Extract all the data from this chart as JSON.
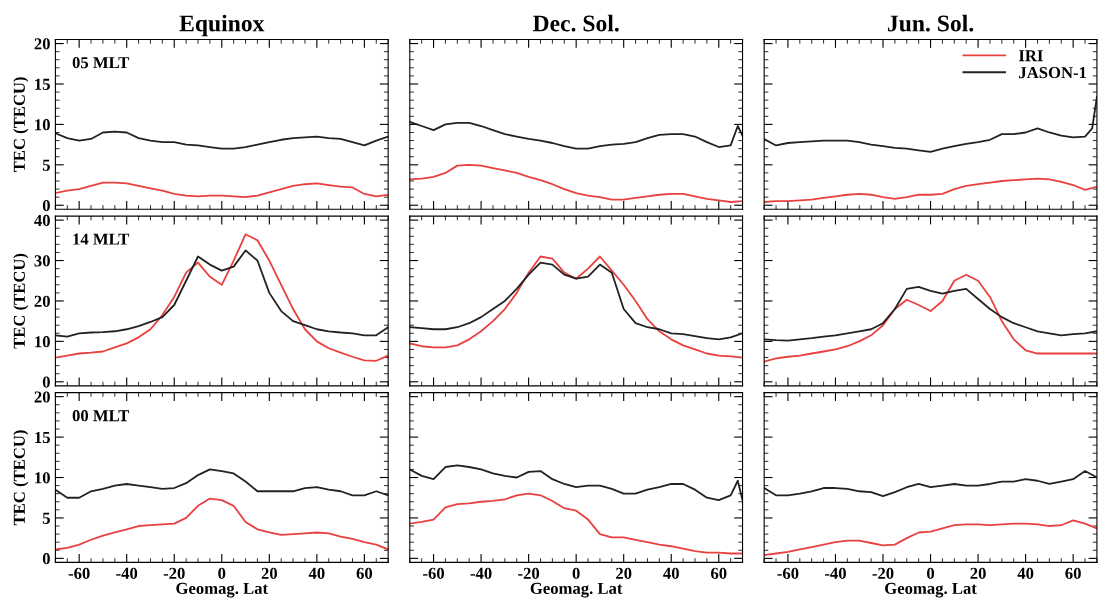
{
  "chart_data": [
    {
      "type": "line",
      "title": "Equinox",
      "ylabel": "TEC (TECU)",
      "annotations": [
        "05 MLT"
      ],
      "xlim": [
        -70,
        70
      ],
      "xticks": [
        -60,
        -40,
        -20,
        0,
        20,
        40,
        60
      ],
      "ylim": [
        -0.5,
        20.5
      ],
      "yticks": [
        0,
        5,
        10,
        15,
        20
      ],
      "tick_labels": "y",
      "legend": false,
      "grid": false,
      "x": [
        -70,
        -65,
        -60,
        -55,
        -50,
        -45,
        -40,
        -35,
        -30,
        -25,
        -20,
        -15,
        -10,
        -5,
        0,
        5,
        10,
        15,
        20,
        25,
        30,
        35,
        40,
        45,
        50,
        55,
        60,
        65,
        70
      ],
      "series": [
        {
          "color": "#e8413f",
          "values": [
            1.5,
            1.8,
            2.0,
            2.4,
            2.8,
            2.8,
            2.7,
            2.4,
            2.1,
            1.8,
            1.4,
            1.2,
            1.1,
            1.2,
            1.2,
            1.1,
            1.0,
            1.2,
            1.6,
            2.0,
            2.4,
            2.6,
            2.7,
            2.5,
            2.3,
            2.2,
            1.4,
            1.1,
            1.3
          ]
        },
        {
          "color": "#222222",
          "values": [
            8.9,
            8.3,
            8.0,
            8.2,
            9.0,
            9.1,
            9.0,
            8.3,
            8.0,
            7.8,
            7.8,
            7.5,
            7.4,
            7.2,
            7.0,
            7.0,
            7.2,
            7.5,
            7.8,
            8.1,
            8.3,
            8.4,
            8.5,
            8.3,
            8.2,
            7.8,
            7.4,
            8.0,
            8.5
          ]
        }
      ]
    },
    {
      "type": "line",
      "title": "Dec. Sol.",
      "xlim": [
        -70,
        70
      ],
      "xticks": [
        -60,
        -40,
        -20,
        0,
        20,
        40,
        60
      ],
      "ylim": [
        -0.5,
        20.5
      ],
      "yticks": [
        0,
        5,
        10,
        15,
        20
      ],
      "tick_labels": false,
      "legend": false,
      "grid": false,
      "x": [
        -70,
        -65,
        -60,
        -55,
        -50,
        -45,
        -40,
        -35,
        -30,
        -25,
        -20,
        -15,
        -10,
        -5,
        0,
        5,
        10,
        15,
        20,
        25,
        30,
        35,
        40,
        45,
        50,
        55,
        60,
        65,
        70
      ],
      "series": [
        {
          "color": "#e8413f",
          "values": [
            3.2,
            3.3,
            3.5,
            4.0,
            4.9,
            5.0,
            4.9,
            4.6,
            4.3,
            4.0,
            3.5,
            3.1,
            2.6,
            2.0,
            1.5,
            1.2,
            1.0,
            0.7,
            0.7,
            0.9,
            1.1,
            1.3,
            1.4,
            1.4,
            1.1,
            0.8,
            0.6,
            0.4,
            0.5
          ]
        },
        {
          "color": "#222222",
          "x": [
            -70,
            -65,
            -60,
            -55,
            -50,
            -45,
            -40,
            -35,
            -30,
            -25,
            -20,
            -15,
            -10,
            -5,
            0,
            5,
            10,
            15,
            20,
            25,
            30,
            35,
            40,
            45,
            50,
            55,
            60,
            65,
            68,
            70
          ],
          "values": [
            10.3,
            9.8,
            9.3,
            10.0,
            10.2,
            10.2,
            9.8,
            9.3,
            8.8,
            8.5,
            8.2,
            8.0,
            7.7,
            7.3,
            7.0,
            7.0,
            7.3,
            7.5,
            7.6,
            7.8,
            8.3,
            8.7,
            8.8,
            8.8,
            8.5,
            7.8,
            7.2,
            7.4,
            9.8,
            8.6
          ]
        }
      ]
    },
    {
      "type": "line",
      "title": "Jun. Sol.",
      "xlim": [
        -70,
        70
      ],
      "xticks": [
        -60,
        -40,
        -20,
        0,
        20,
        40,
        60
      ],
      "ylim": [
        -0.5,
        20.5
      ],
      "yticks": [
        0,
        5,
        10,
        15,
        20
      ],
      "tick_labels": false,
      "legend": "top right",
      "grid": false,
      "x": [
        -70,
        -65,
        -60,
        -55,
        -50,
        -45,
        -40,
        -35,
        -30,
        -25,
        -20,
        -15,
        -10,
        -5,
        0,
        5,
        10,
        15,
        20,
        25,
        30,
        35,
        40,
        45,
        50,
        55,
        60,
        65,
        70
      ],
      "series": [
        {
          "name": "IRI",
          "color": "#e8413f",
          "values": [
            0.4,
            0.5,
            0.5,
            0.6,
            0.7,
            0.9,
            1.1,
            1.3,
            1.4,
            1.3,
            1.0,
            0.8,
            1.0,
            1.3,
            1.3,
            1.4,
            2.0,
            2.4,
            2.6,
            2.8,
            3.0,
            3.1,
            3.2,
            3.3,
            3.2,
            2.9,
            2.5,
            1.9,
            2.3
          ]
        },
        {
          "name": "JASON-1",
          "color": "#222222",
          "x": [
            -70,
            -65,
            -60,
            -55,
            -50,
            -45,
            -40,
            -35,
            -30,
            -25,
            -20,
            -15,
            -10,
            -5,
            0,
            5,
            10,
            15,
            20,
            25,
            30,
            35,
            40,
            45,
            50,
            55,
            60,
            65,
            68,
            70
          ],
          "values": [
            8.2,
            7.4,
            7.7,
            7.8,
            7.9,
            8.0,
            8.0,
            8.0,
            7.8,
            7.5,
            7.3,
            7.1,
            7.0,
            6.8,
            6.6,
            7.0,
            7.3,
            7.6,
            7.8,
            8.1,
            8.8,
            8.8,
            9.0,
            9.5,
            9.0,
            8.6,
            8.4,
            8.5,
            9.5,
            13.4
          ]
        }
      ]
    },
    {
      "type": "line",
      "ylabel": "TEC (TECU)",
      "annotations": [
        "14 MLT"
      ],
      "xlim": [
        -70,
        70
      ],
      "xticks": [
        -60,
        -40,
        -20,
        0,
        20,
        40,
        60
      ],
      "ylim": [
        -1,
        41
      ],
      "yticks": [
        0,
        10,
        20,
        30,
        40
      ],
      "tick_labels": "y",
      "legend": false,
      "grid": false,
      "x": [
        -70,
        -65,
        -60,
        -55,
        -50,
        -45,
        -40,
        -35,
        -30,
        -25,
        -20,
        -15,
        -10,
        -5,
        0,
        5,
        10,
        15,
        20,
        25,
        30,
        35,
        40,
        45,
        50,
        55,
        60,
        65,
        70
      ],
      "series": [
        {
          "color": "#e8413f",
          "values": [
            6,
            6.5,
            7,
            7.2,
            7.5,
            8.5,
            9.5,
            11,
            13,
            16.5,
            21,
            27,
            29.5,
            26,
            24,
            30,
            36.5,
            35,
            30,
            24,
            18,
            13,
            10,
            8.3,
            7.2,
            6.2,
            5.3,
            5.2,
            6.5
          ]
        },
        {
          "color": "#222222",
          "values": [
            11.5,
            11.2,
            12,
            12.2,
            12.3,
            12.5,
            13,
            13.8,
            14.8,
            16,
            19,
            25,
            31,
            29,
            27.5,
            28.5,
            32.5,
            30,
            22,
            17.5,
            15,
            14,
            13,
            12.5,
            12.2,
            12,
            11.5,
            11.5,
            13.5
          ]
        }
      ]
    },
    {
      "type": "line",
      "xlim": [
        -70,
        70
      ],
      "xticks": [
        -60,
        -40,
        -20,
        0,
        20,
        40,
        60
      ],
      "ylim": [
        -1,
        41
      ],
      "yticks": [
        0,
        10,
        20,
        30,
        40
      ],
      "tick_labels": false,
      "legend": false,
      "grid": false,
      "x": [
        -70,
        -65,
        -60,
        -55,
        -50,
        -45,
        -40,
        -35,
        -30,
        -25,
        -20,
        -15,
        -10,
        -5,
        0,
        5,
        10,
        15,
        20,
        25,
        30,
        35,
        40,
        45,
        50,
        55,
        60,
        65,
        70
      ],
      "series": [
        {
          "color": "#e8413f",
          "values": [
            9.5,
            8.8,
            8.5,
            8.5,
            9,
            10.5,
            12.5,
            15,
            18,
            22,
            27,
            31,
            30.5,
            27,
            25.5,
            28,
            31,
            27.5,
            24,
            20,
            15.5,
            12.5,
            10.5,
            9,
            8,
            7,
            6.5,
            6.3,
            6
          ]
        },
        {
          "color": "#222222",
          "values": [
            13.5,
            13.3,
            13,
            13,
            13.5,
            14.5,
            16,
            18,
            20,
            23,
            26.5,
            29.5,
            29,
            26.5,
            25.5,
            26,
            29,
            27,
            18,
            14.5,
            13.5,
            13,
            12,
            11.8,
            11.3,
            10.8,
            10.5,
            11,
            12
          ]
        }
      ]
    },
    {
      "type": "line",
      "xlim": [
        -70,
        70
      ],
      "xticks": [
        -60,
        -40,
        -20,
        0,
        20,
        40,
        60
      ],
      "ylim": [
        -1,
        41
      ],
      "yticks": [
        0,
        10,
        20,
        30,
        40
      ],
      "tick_labels": false,
      "legend": false,
      "grid": false,
      "x": [
        -70,
        -65,
        -60,
        -55,
        -50,
        -45,
        -40,
        -35,
        -30,
        -25,
        -20,
        -15,
        -10,
        -5,
        0,
        5,
        10,
        15,
        20,
        25,
        30,
        35,
        40,
        45,
        50,
        55,
        60,
        65,
        70
      ],
      "series": [
        {
          "color": "#e8413f",
          "values": [
            5,
            5.8,
            6.2,
            6.5,
            7,
            7.5,
            8,
            8.8,
            10,
            11.5,
            14,
            18,
            20.3,
            19,
            17.5,
            20,
            25,
            26.5,
            25,
            21,
            15,
            10.5,
            7.8,
            7,
            7,
            7,
            7,
            7,
            7
          ]
        },
        {
          "color": "#222222",
          "values": [
            10.5,
            10.3,
            10.2,
            10.5,
            10.8,
            11.2,
            11.5,
            12,
            12.5,
            13,
            14.5,
            18,
            23,
            23.5,
            22.5,
            21.8,
            22.5,
            23,
            20.5,
            18,
            16,
            14.5,
            13.5,
            12.5,
            12,
            11.5,
            11.8,
            12,
            12.5
          ]
        }
      ]
    },
    {
      "type": "line",
      "ylabel": "TEC (TECU)",
      "xlabel": "Geomag. Lat",
      "annotations": [
        "00 MLT"
      ],
      "xlim": [
        -70,
        70
      ],
      "xticks": [
        -60,
        -40,
        -20,
        0,
        20,
        40,
        60
      ],
      "ylim": [
        -0.5,
        20.5
      ],
      "yticks": [
        0,
        5,
        10,
        15,
        20
      ],
      "legend": false,
      "grid": false,
      "x": [
        -70,
        -65,
        -60,
        -55,
        -50,
        -45,
        -40,
        -35,
        -30,
        -25,
        -20,
        -15,
        -10,
        -5,
        0,
        5,
        10,
        15,
        20,
        25,
        30,
        35,
        40,
        45,
        50,
        55,
        60,
        65,
        70
      ],
      "series": [
        {
          "color": "#e8413f",
          "values": [
            1.1,
            1.3,
            1.7,
            2.3,
            2.8,
            3.2,
            3.6,
            4.0,
            4.1,
            4.2,
            4.3,
            5.0,
            6.5,
            7.4,
            7.2,
            6.5,
            4.5,
            3.6,
            3.2,
            2.9,
            3.0,
            3.1,
            3.2,
            3.1,
            2.7,
            2.4,
            2.0,
            1.7,
            1.1
          ]
        },
        {
          "color": "#222222",
          "values": [
            8.5,
            7.5,
            7.5,
            8.3,
            8.6,
            9,
            9.2,
            9,
            8.8,
            8.6,
            8.7,
            9.3,
            10.3,
            11,
            10.8,
            10.5,
            9.5,
            8.3,
            8.3,
            8.3,
            8.3,
            8.7,
            8.8,
            8.5,
            8.3,
            7.8,
            7.8,
            8.3,
            7.8
          ]
        }
      ]
    },
    {
      "type": "line",
      "xlabel": "Geomag. Lat",
      "xlim": [
        -70,
        70
      ],
      "xticks": [
        -60,
        -40,
        -20,
        0,
        20,
        40,
        60
      ],
      "ylim": [
        -0.5,
        20.5
      ],
      "yticks": [
        0,
        5,
        10,
        15,
        20
      ],
      "tick_labels": "x",
      "legend": false,
      "grid": false,
      "x": [
        -70,
        -65,
        -60,
        -55,
        -50,
        -45,
        -40,
        -35,
        -30,
        -25,
        -20,
        -15,
        -10,
        -5,
        0,
        5,
        10,
        15,
        20,
        25,
        30,
        35,
        40,
        45,
        50,
        55,
        60,
        65,
        70
      ],
      "series": [
        {
          "color": "#e8413f",
          "values": [
            4.3,
            4.5,
            4.8,
            6.3,
            6.7,
            6.8,
            7,
            7.1,
            7.3,
            7.8,
            8,
            7.8,
            7.1,
            6.2,
            5.9,
            4.8,
            3,
            2.6,
            2.6,
            2.3,
            2.0,
            1.7,
            1.5,
            1.2,
            0.9,
            0.7,
            0.7,
            0.6,
            0.6
          ]
        },
        {
          "color": "#222222",
          "x": [
            -70,
            -65,
            -60,
            -55,
            -50,
            -45,
            -40,
            -35,
            -30,
            -25,
            -20,
            -15,
            -10,
            -5,
            0,
            5,
            10,
            15,
            20,
            25,
            30,
            35,
            40,
            45,
            50,
            55,
            60,
            65,
            68,
            70
          ],
          "values": [
            11,
            10.2,
            9.8,
            11.3,
            11.5,
            11.3,
            11,
            10.5,
            10.2,
            10,
            10.7,
            10.8,
            9.8,
            9.2,
            8.8,
            9,
            9,
            8.6,
            8,
            8,
            8.5,
            8.8,
            9.2,
            9.2,
            8.5,
            7.5,
            7.2,
            7.8,
            9.6,
            7.2
          ]
        }
      ]
    },
    {
      "type": "line",
      "xlabel": "Geomag. Lat",
      "xlim": [
        -70,
        70
      ],
      "xticks": [
        -60,
        -40,
        -20,
        0,
        20,
        40,
        60
      ],
      "ylim": [
        -0.5,
        20.5
      ],
      "yticks": [
        0,
        5,
        10,
        15,
        20
      ],
      "tick_labels": "x",
      "legend": false,
      "grid": false,
      "x": [
        -70,
        -65,
        -60,
        -55,
        -50,
        -45,
        -40,
        -35,
        -30,
        -25,
        -20,
        -15,
        -10,
        -5,
        0,
        5,
        10,
        15,
        20,
        25,
        30,
        35,
        40,
        45,
        50,
        55,
        60,
        65,
        70
      ],
      "series": [
        {
          "color": "#e8413f",
          "values": [
            0.4,
            0.6,
            0.8,
            1.1,
            1.4,
            1.7,
            2.0,
            2.2,
            2.2,
            1.9,
            1.6,
            1.7,
            2.5,
            3.2,
            3.3,
            3.7,
            4.1,
            4.2,
            4.2,
            4.1,
            4.2,
            4.3,
            4.3,
            4.2,
            4.0,
            4.1,
            4.7,
            4.3,
            3.7
          ]
        },
        {
          "color": "#222222",
          "values": [
            8.7,
            7.8,
            7.8,
            8.0,
            8.3,
            8.7,
            8.7,
            8.6,
            8.3,
            8.2,
            7.7,
            8.2,
            8.8,
            9.2,
            8.8,
            9,
            9.2,
            9,
            9,
            9.2,
            9.5,
            9.5,
            9.8,
            9.6,
            9.2,
            9.5,
            9.8,
            10.8,
            10
          ]
        }
      ]
    }
  ]
}
